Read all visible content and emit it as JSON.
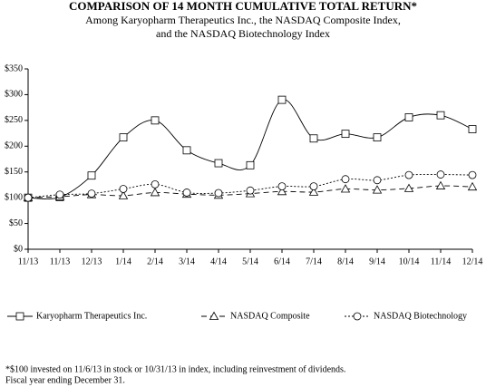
{
  "chart_data": {
    "type": "line",
    "title": "COMPARISON OF 14 MONTH CUMULATIVE TOTAL RETURN*",
    "subtitle": [
      "Among Karyopharm Therapeutics Inc., the NASDAQ Composite Index,",
      "and the NASDAQ Biotechnology Index"
    ],
    "categories": [
      "11/13",
      "11/13",
      "12/13",
      "1/14",
      "2/14",
      "3/14",
      "4/14",
      "5/14",
      "6/14",
      "7/14",
      "8/14",
      "9/14",
      "10/14",
      "11/14",
      "12/14"
    ],
    "series": [
      {
        "name": "Karyopharm Therapeutics Inc.",
        "color": "#000000",
        "style": "solid",
        "marker": "square",
        "values": [
          100,
          101,
          143,
          217,
          250,
          192,
          167,
          163,
          290,
          215,
          224,
          217,
          256,
          260,
          233
        ]
      },
      {
        "name": "NASDAQ Composite",
        "color": "#000000",
        "style": "dashed",
        "marker": "triangle",
        "values": [
          100,
          102,
          106,
          104,
          110,
          107,
          105,
          108,
          112,
          111,
          117,
          115,
          118,
          123,
          121
        ]
      },
      {
        "name": "NASDAQ Biotechnology",
        "color": "#000000",
        "style": "dotted",
        "marker": "circle",
        "values": [
          100,
          106,
          108,
          117,
          126,
          110,
          109,
          114,
          122,
          122,
          136,
          134,
          144,
          145,
          144
        ]
      }
    ],
    "ylim": [
      0,
      350
    ],
    "yticks": [
      {
        "value": 0,
        "label": "$0"
      },
      {
        "value": 50,
        "label": "$50"
      },
      {
        "value": 100,
        "label": "$100"
      },
      {
        "value": 150,
        "label": "$150"
      },
      {
        "value": 200,
        "label": "$200"
      },
      {
        "value": 250,
        "label": "$250"
      },
      {
        "value": 300,
        "label": "$300"
      },
      {
        "value": 350,
        "label": "$350"
      }
    ],
    "grid": false,
    "footnote": [
      "*$100 invested on 11/6/13 in stock or 10/31/13 in index, including reinvestment of dividends.",
      "Fiscal year ending December 31."
    ]
  }
}
